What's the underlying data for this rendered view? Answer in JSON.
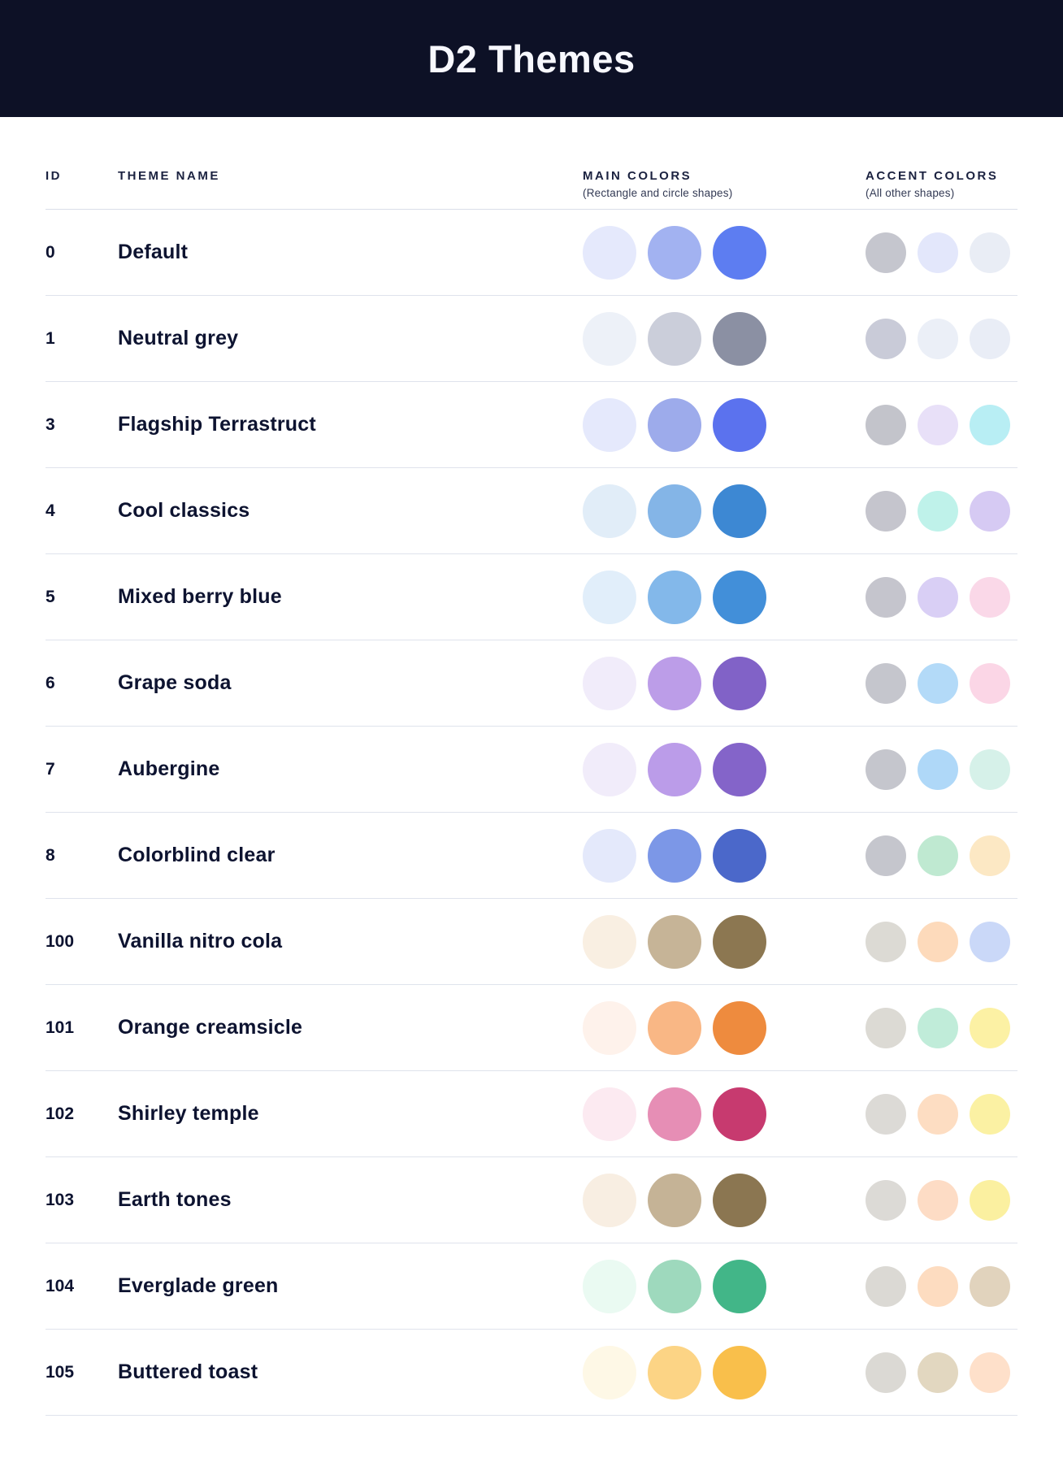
{
  "banner": {
    "title": "D2 Themes",
    "bg": "#0D1126",
    "title_color": "#F7F8FE"
  },
  "table": {
    "columns": {
      "id_label": "ID",
      "name_label": "THEME NAME",
      "main_label": "MAIN COLORS",
      "main_sub": "(Rectangle and circle shapes)",
      "accent_label": "ACCENT COLORS",
      "accent_sub": "(All other shapes)"
    },
    "rows": [
      {
        "id": "0",
        "name": "Default",
        "main": [
          "#E5E9FC",
          "#A2B2F1",
          "#5D7DF1"
        ],
        "accent": [
          "#C5C6CE",
          "#E3E7FB",
          "#E9EDF5"
        ]
      },
      {
        "id": "1",
        "name": "Neutral grey",
        "main": [
          "#EDF1F8",
          "#CBCEDA",
          "#8B90A3"
        ],
        "accent": [
          "#C9CBD8",
          "#EBEFF7",
          "#E9EDF6"
        ]
      },
      {
        "id": "3",
        "name": "Flagship Terrastruct",
        "main": [
          "#E5E9FC",
          "#9DABEB",
          "#5B72EE"
        ],
        "accent": [
          "#C3C4CB",
          "#E8E0F8",
          "#B8EEF4"
        ]
      },
      {
        "id": "4",
        "name": "Cool classics",
        "main": [
          "#E1EDF8",
          "#84B5E7",
          "#3D88D3"
        ],
        "accent": [
          "#C5C5CD",
          "#BFF2EA",
          "#D6CAF3"
        ]
      },
      {
        "id": "5",
        "name": "Mixed berry blue",
        "main": [
          "#E1EEFA",
          "#83B8EA",
          "#428FD9"
        ],
        "accent": [
          "#C5C5CD",
          "#D9CFF5",
          "#FAD8E8"
        ]
      },
      {
        "id": "6",
        "name": "Grape soda",
        "main": [
          "#F1ECFA",
          "#BC9DE8",
          "#8162C7"
        ],
        "accent": [
          "#C5C6CD",
          "#B3DAF8",
          "#FBD6E6"
        ]
      },
      {
        "id": "7",
        "name": "Aubergine",
        "main": [
          "#F1ECFA",
          "#BB9CE9",
          "#8464C9"
        ],
        "accent": [
          "#C5C6CD",
          "#AFD8F8",
          "#D6F1E9"
        ]
      },
      {
        "id": "8",
        "name": "Colorblind clear",
        "main": [
          "#E4E9FB",
          "#7C97E7",
          "#4B68CA"
        ],
        "accent": [
          "#C5C6CD",
          "#BFE9D1",
          "#FCE8C4"
        ]
      },
      {
        "id": "100",
        "name": "Vanilla nitro cola",
        "main": [
          "#F9EFE2",
          "#C6B497",
          "#8C7751"
        ],
        "accent": [
          "#DCDAD4",
          "#FDDABB",
          "#CAD8F8"
        ]
      },
      {
        "id": "101",
        "name": "Orange creamsicle",
        "main": [
          "#FEF2EB",
          "#F9B785",
          "#EE8B3E"
        ],
        "accent": [
          "#DCDAD4",
          "#C0ECD9",
          "#FCF1A4"
        ]
      },
      {
        "id": "102",
        "name": "Shirley temple",
        "main": [
          "#FCEAF1",
          "#E68EB5",
          "#C73A6F"
        ],
        "accent": [
          "#DCDAD6",
          "#FDDDC2",
          "#FBF1A3"
        ]
      },
      {
        "id": "103",
        "name": "Earth tones",
        "main": [
          "#F8EEE2",
          "#C5B396",
          "#8B7651"
        ],
        "accent": [
          "#DCDAD6",
          "#FDDCC5",
          "#FBF0A0"
        ]
      },
      {
        "id": "104",
        "name": "Everglade green",
        "main": [
          "#EAFAF2",
          "#9ED9BD",
          "#42B688"
        ],
        "accent": [
          "#DBD9D4",
          "#FDDCC0",
          "#E1D3BD"
        ]
      },
      {
        "id": "105",
        "name": "Buttered toast",
        "main": [
          "#FEF8E6",
          "#FCD485",
          "#F9BF4B"
        ],
        "accent": [
          "#DBD9D4",
          "#E2D7C0",
          "#FEE0CA"
        ]
      }
    ]
  },
  "colors": {
    "text": "#0D1330",
    "divider": "#DFE3EC",
    "banner_bg": "#0D1126"
  }
}
